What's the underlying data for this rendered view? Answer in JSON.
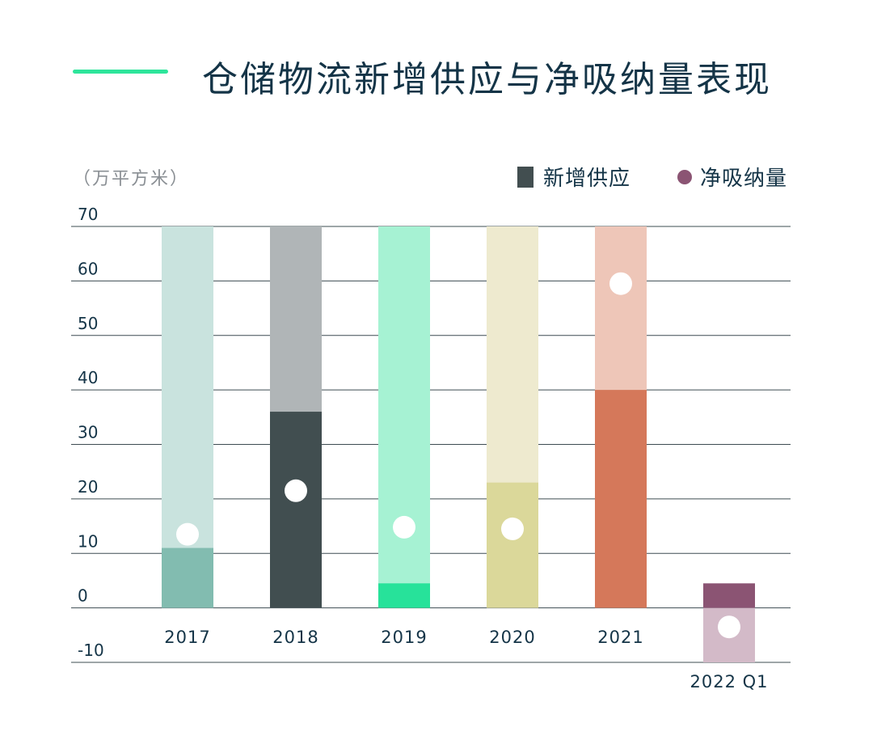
{
  "title": "仓储物流新增供应与净吸纳量表现",
  "chart_data": {
    "type": "bar",
    "unit_label": "（万平方米）",
    "legend": [
      "新增供应",
      "净吸纳量"
    ],
    "legend_placement": "top-right",
    "categories": [
      "2017",
      "2018",
      "2019",
      "2020",
      "2021",
      "2022 Q1"
    ],
    "series": [
      {
        "name": "新增供应",
        "type": "bar",
        "values": [
          11,
          36,
          4.5,
          23,
          40,
          4.5
        ]
      },
      {
        "name": "净吸纳量",
        "type": "scatter",
        "values": [
          13.5,
          21.5,
          14.8,
          14.5,
          59.5,
          -3.5
        ]
      }
    ],
    "ylim": [
      -10,
      70
    ],
    "yticks": [
      70,
      60,
      50,
      40,
      30,
      20,
      10,
      0,
      -10
    ],
    "grid": true,
    "colors": {
      "bar": [
        "#82bcb0",
        "#414e50",
        "#27e29a",
        "#dbd89a",
        "#d5785a",
        "#8b5473"
      ],
      "track": [
        "#c9e3de",
        "#b0b5b7",
        "#a6f2d3",
        "#eeeacf",
        "#eec6b8",
        "#d3bac8"
      ],
      "gridline": "#3e4c52",
      "axis_text": "#143447",
      "marker": "#ffffff"
    }
  }
}
